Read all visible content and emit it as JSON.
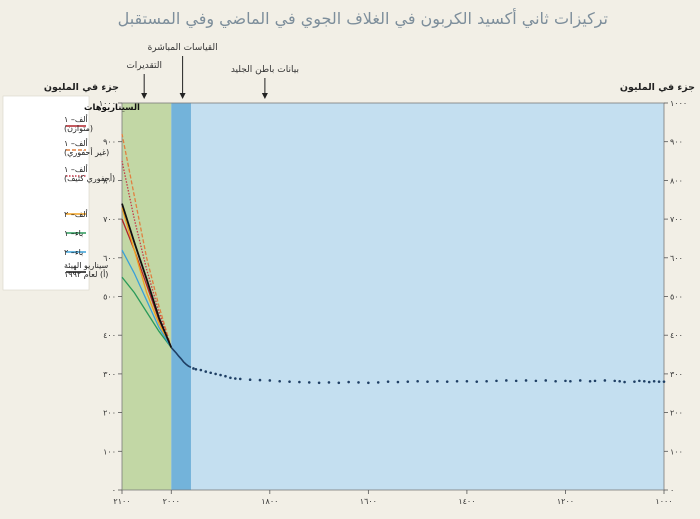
{
  "chart_data": {
    "type": "line",
    "title": "تركيزات ثاني أكسيد الكربون في الغلاف الجوي في الماضي وفي المستقبل",
    "ylabel_left": "جزء في المليون",
    "ylabel_right": "جزء في المليون",
    "xlim": [
      1000,
      2100
    ],
    "ylim": [
      0,
      1000
    ],
    "x_ticks": [
      {
        "value": 1000,
        "label": "١٠٠٠"
      },
      {
        "value": 1200,
        "label": "١٢٠٠"
      },
      {
        "value": 1400,
        "label": "١٤٠٠"
      },
      {
        "value": 1600,
        "label": "١٦٠٠"
      },
      {
        "value": 1800,
        "label": "١٨٠٠"
      },
      {
        "value": 2000,
        "label": "٢٠٠٠"
      },
      {
        "value": 2100,
        "label": "٢١٠٠"
      }
    ],
    "y_ticks": [
      {
        "value": 0,
        "label": "٠"
      },
      {
        "value": 100,
        "label": "١٠٠"
      },
      {
        "value": 200,
        "label": "٢٠٠"
      },
      {
        "value": 300,
        "label": "٣٠٠"
      },
      {
        "value": 400,
        "label": "٤٠٠"
      },
      {
        "value": 500,
        "label": "٥٠٠"
      },
      {
        "value": 600,
        "label": "٦٠٠"
      },
      {
        "value": 700,
        "label": "٧٠٠"
      },
      {
        "value": 800,
        "label": "٨٠٠"
      },
      {
        "value": 900,
        "label": "٩٠٠"
      },
      {
        "value": 1000,
        "label": "١٠٠٠"
      }
    ],
    "regions": [
      {
        "name": "التقديرات",
        "x_from": 2000,
        "x_to": 2100,
        "color": "#c2d7a5"
      },
      {
        "name": "القياسات المباشرة",
        "x_from": 1960,
        "x_to": 2000,
        "color": "#73b3da"
      },
      {
        "name": "بيانات باطن الجليد",
        "x_from": 1000,
        "x_to": 1960,
        "color": "#c4dff0"
      }
    ],
    "annotations": [
      {
        "text": "التقديرات",
        "x": 2055
      },
      {
        "text": "القياسات المباشرة",
        "x": 1977
      },
      {
        "text": "بيانات باطن الجليد",
        "x": 1810
      }
    ],
    "legend": {
      "title": "السيناريوهات",
      "placement": "left",
      "entries": [
        {
          "label": "ألف– ١ (متوازن)",
          "color": "#b0232a",
          "dash": "solid"
        },
        {
          "label": "ألف– ١ (غير أحفوري)",
          "color": "#e08040",
          "dash": "dashed"
        },
        {
          "label": "ألف– ١ (أحفوري كثيف)",
          "color": "#c43a4a",
          "dash": "dotted"
        },
        {
          "label": "ألف– ٢",
          "color": "#f0a020",
          "dash": "solid"
        },
        {
          "label": "باء– ١",
          "color": "#2a9a5a",
          "dash": "solid"
        },
        {
          "label": "باء– ٢",
          "color": "#3aa0d8",
          "dash": "solid"
        },
        {
          "label": "سيناريو الهيئة (أ) لعام ١٩٩٢",
          "color": "#111111",
          "dash": "solid"
        }
      ]
    },
    "series": [
      {
        "name": "ألف– ١ (متوازن)",
        "x": [
          2000,
          2025,
          2050,
          2075,
          2100
        ],
        "y": [
          368,
          440,
          530,
          620,
          700
        ]
      },
      {
        "name": "ألف– ١ (غير أحفوري)",
        "x": [
          2000,
          2025,
          2050,
          2075,
          2100
        ],
        "y": [
          368,
          475,
          600,
          760,
          920
        ]
      },
      {
        "name": "ألف– ١ (أحفوري كثيف)",
        "x": [
          2000,
          2025,
          2050,
          2075,
          2100
        ],
        "y": [
          368,
          460,
          570,
          700,
          850
        ]
      },
      {
        "name": "ألف– ٢",
        "x": [
          2000,
          2025,
          2050,
          2075,
          2100
        ],
        "y": [
          368,
          430,
          510,
          620,
          730
        ]
      },
      {
        "name": "باء– ١",
        "x": [
          2000,
          2025,
          2050,
          2075,
          2100
        ],
        "y": [
          368,
          410,
          460,
          510,
          550
        ]
      },
      {
        "name": "باء– ٢",
        "x": [
          2000,
          2025,
          2050,
          2075,
          2100
        ],
        "y": [
          368,
          420,
          490,
          560,
          620
        ]
      },
      {
        "name": "سيناريو الهيئة (أ) لعام ١٩٩٢",
        "x": [
          2000,
          2025,
          2050,
          2075,
          2100
        ],
        "y": [
          368,
          445,
          545,
          640,
          740
        ]
      }
    ],
    "measured": {
      "x": [
        1960,
        1965,
        1970,
        1975,
        1980,
        1985,
        1990,
        1995,
        2000
      ],
      "y": [
        317,
        320,
        325,
        331,
        339,
        346,
        354,
        361,
        368
      ]
    },
    "ice_core": {
      "x": [
        1000,
        1010,
        1020,
        1030,
        1040,
        1050,
        1060,
        1080,
        1090,
        1100,
        1120,
        1140,
        1150,
        1170,
        1190,
        1200,
        1220,
        1240,
        1260,
        1280,
        1300,
        1320,
        1340,
        1360,
        1380,
        1400,
        1420,
        1440,
        1460,
        1480,
        1500,
        1520,
        1540,
        1560,
        1580,
        1600,
        1620,
        1640,
        1660,
        1680,
        1700,
        1720,
        1740,
        1760,
        1780,
        1800,
        1820,
        1840,
        1860,
        1870,
        1880,
        1890,
        1900,
        1910,
        1920,
        1930,
        1940,
        1950,
        1955
      ],
      "y": [
        280,
        280,
        281,
        279,
        281,
        282,
        280,
        279,
        281,
        282,
        283,
        282,
        281,
        283,
        281,
        282,
        281,
        283,
        282,
        283,
        282,
        283,
        282,
        281,
        280,
        281,
        281,
        280,
        281,
        280,
        281,
        280,
        279,
        280,
        278,
        277,
        278,
        279,
        277,
        278,
        277,
        278,
        279,
        280,
        281,
        283,
        284,
        285,
        287,
        288,
        290,
        294,
        297,
        300,
        303,
        306,
        310,
        312,
        314
      ]
    }
  }
}
